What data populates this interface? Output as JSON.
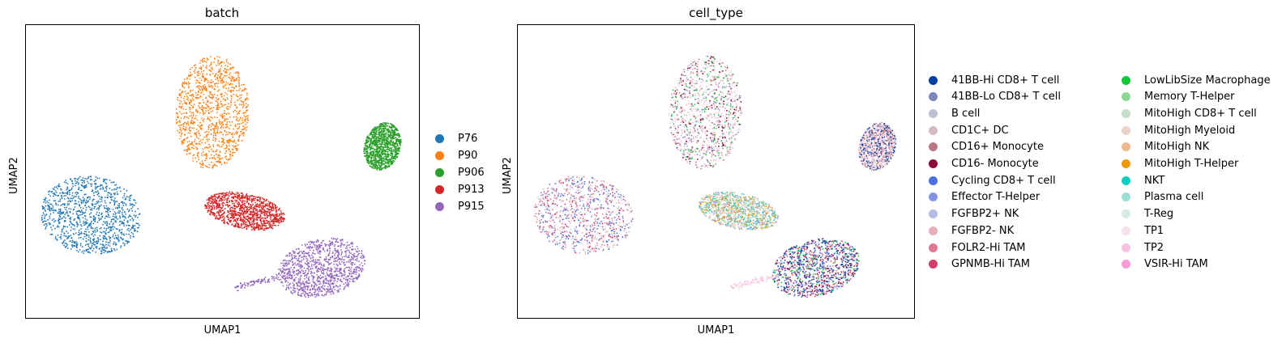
{
  "chart_data": [
    {
      "type": "scatter",
      "title": "batch",
      "xlabel": "UMAP1",
      "ylabel": "UMAP2",
      "grid": false,
      "legend_position": "right",
      "series": [
        {
          "name": "P76",
          "color": "#1f77b4",
          "cluster": {
            "cx": -9.5,
            "cy": -1.8,
            "rx": 2.2,
            "ry": 1.9
          }
        },
        {
          "name": "P90",
          "color": "#ff7f0e",
          "cluster": {
            "cx": -4.6,
            "cy": 6.8,
            "rx": 1.7,
            "ry": 2.6
          }
        },
        {
          "name": "P906",
          "color": "#2ca02c",
          "cluster": {
            "cx": 6.6,
            "cy": 2.9,
            "rx": 0.9,
            "ry": 1.1
          }
        },
        {
          "name": "P913",
          "color": "#d62728",
          "cluster": {
            "cx": -1.8,
            "cy": -0.9,
            "rx": 1.8,
            "ry": 0.7
          }
        },
        {
          "name": "P915",
          "color": "#9467bd",
          "cluster": {
            "cx": 2.8,
            "cy": -5.4,
            "rx": 2.5,
            "ry": 1.4
          }
        }
      ],
      "xlim": [
        -13,
        8
      ],
      "ylim": [
        -8.5,
        10
      ]
    },
    {
      "type": "scatter",
      "title": "cell_type",
      "xlabel": "UMAP1",
      "ylabel": "UMAP2",
      "grid": false,
      "legend_position": "right (two columns)",
      "series": [
        {
          "name": "41BB-Hi CD8+ T cell",
          "color": "#023fa5"
        },
        {
          "name": "41BB-Lo CD8+ T cell",
          "color": "#7d87b9"
        },
        {
          "name": "B cell",
          "color": "#bec1d4"
        },
        {
          "name": "CD1C+ DC",
          "color": "#d6bcc0"
        },
        {
          "name": "CD16+ Monocyte",
          "color": "#bb7784"
        },
        {
          "name": "CD16- Monocyte",
          "color": "#8e063b"
        },
        {
          "name": "Cycling CD8+ T cell",
          "color": "#4a6fe3"
        },
        {
          "name": "Effector T-Helper",
          "color": "#8595e1"
        },
        {
          "name": "FGFBP2+ NK",
          "color": "#b5bbe3"
        },
        {
          "name": "FGFBP2- NK",
          "color": "#e6afb9"
        },
        {
          "name": "FOLR2-Hi TAM",
          "color": "#e07b91"
        },
        {
          "name": "GPNMB-Hi TAM",
          "color": "#d33f6a"
        },
        {
          "name": "LowLibSize Macrophage",
          "color": "#11c638"
        },
        {
          "name": "Memory T-Helper",
          "color": "#8dd593"
        },
        {
          "name": "MitoHigh CD8+ T cell",
          "color": "#c6dec7"
        },
        {
          "name": "MitoHigh Myeloid",
          "color": "#ead3c6"
        },
        {
          "name": "MitoHigh NK",
          "color": "#f0b98d"
        },
        {
          "name": "MitoHigh T-Helper",
          "color": "#ef9708"
        },
        {
          "name": "NKT",
          "color": "#0fcfc0"
        },
        {
          "name": "Plasma cell",
          "color": "#9cded6"
        },
        {
          "name": "T-Reg",
          "color": "#d5eae7"
        },
        {
          "name": "TP1",
          "color": "#f3e1eb"
        },
        {
          "name": "TP2",
          "color": "#f6c4e1"
        },
        {
          "name": "VSIR-Hi TAM",
          "color": "#f79cd4"
        }
      ],
      "xlim": [
        -13,
        8
      ],
      "ylim": [
        -8.5,
        10
      ]
    }
  ]
}
